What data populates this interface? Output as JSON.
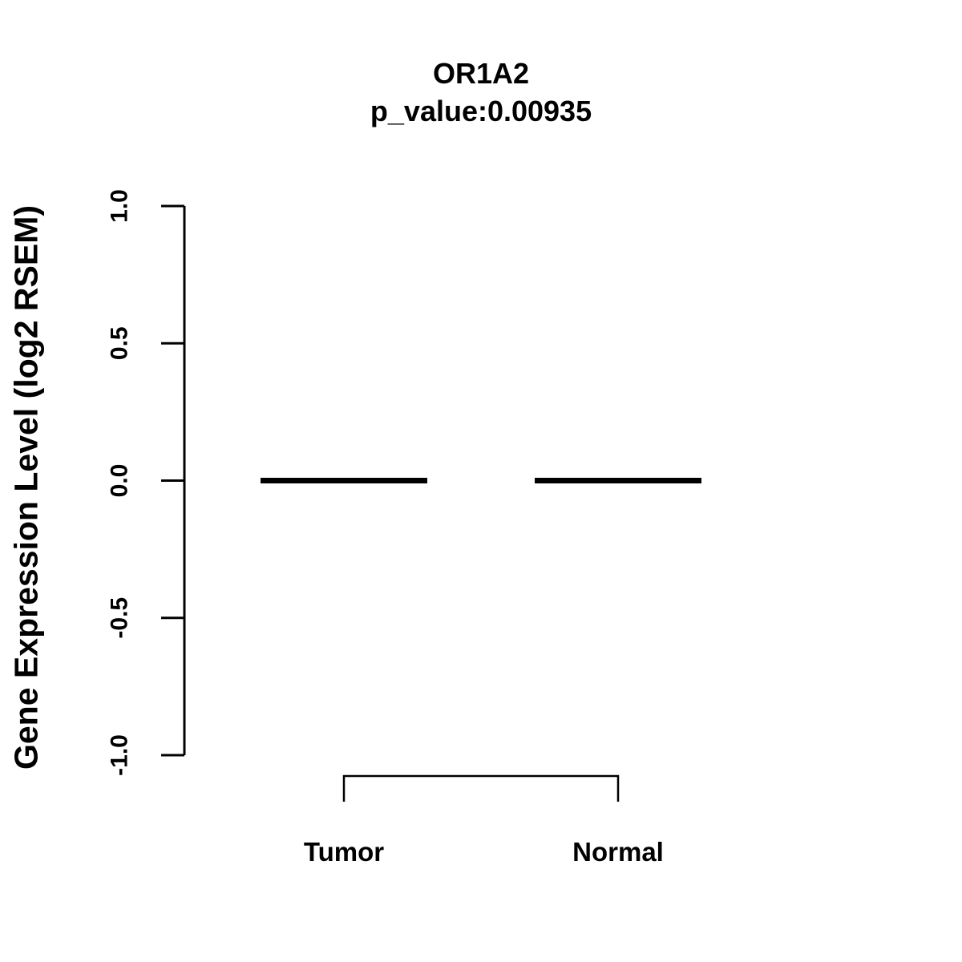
{
  "page": {
    "background_color": "#ffffff",
    "foreground_color": "#000000"
  },
  "chart_data": {
    "type": "boxplot",
    "title": "OR1A2",
    "subtitle": "p_value:0.00935",
    "gene": "OR1A2",
    "p_value": 0.00935,
    "ylabel": "Gene Expression Level (log2 RSEM)",
    "categories": [
      "Tumor",
      "Normal"
    ],
    "series": [
      {
        "name": "Tumor",
        "median": 0.0,
        "q1": 0.0,
        "q3": 0.0,
        "whisker_low": 0.0,
        "whisker_high": 0.0
      },
      {
        "name": "Normal",
        "median": 0.0,
        "q1": 0.0,
        "q3": 0.0,
        "whisker_low": 0.0,
        "whisker_high": 0.0
      }
    ],
    "ylim": [
      -1.0,
      1.0
    ],
    "yticks": [
      -1.0,
      -0.5,
      0.0,
      0.5,
      1.0
    ],
    "ytick_labels": [
      "-1.0",
      "-0.5",
      "0.0",
      "0.5",
      "1.0"
    ],
    "grid": false,
    "legend": false,
    "comparison_bracket": {
      "from": "Tumor",
      "to": "Normal"
    },
    "line_color": "#000000"
  }
}
